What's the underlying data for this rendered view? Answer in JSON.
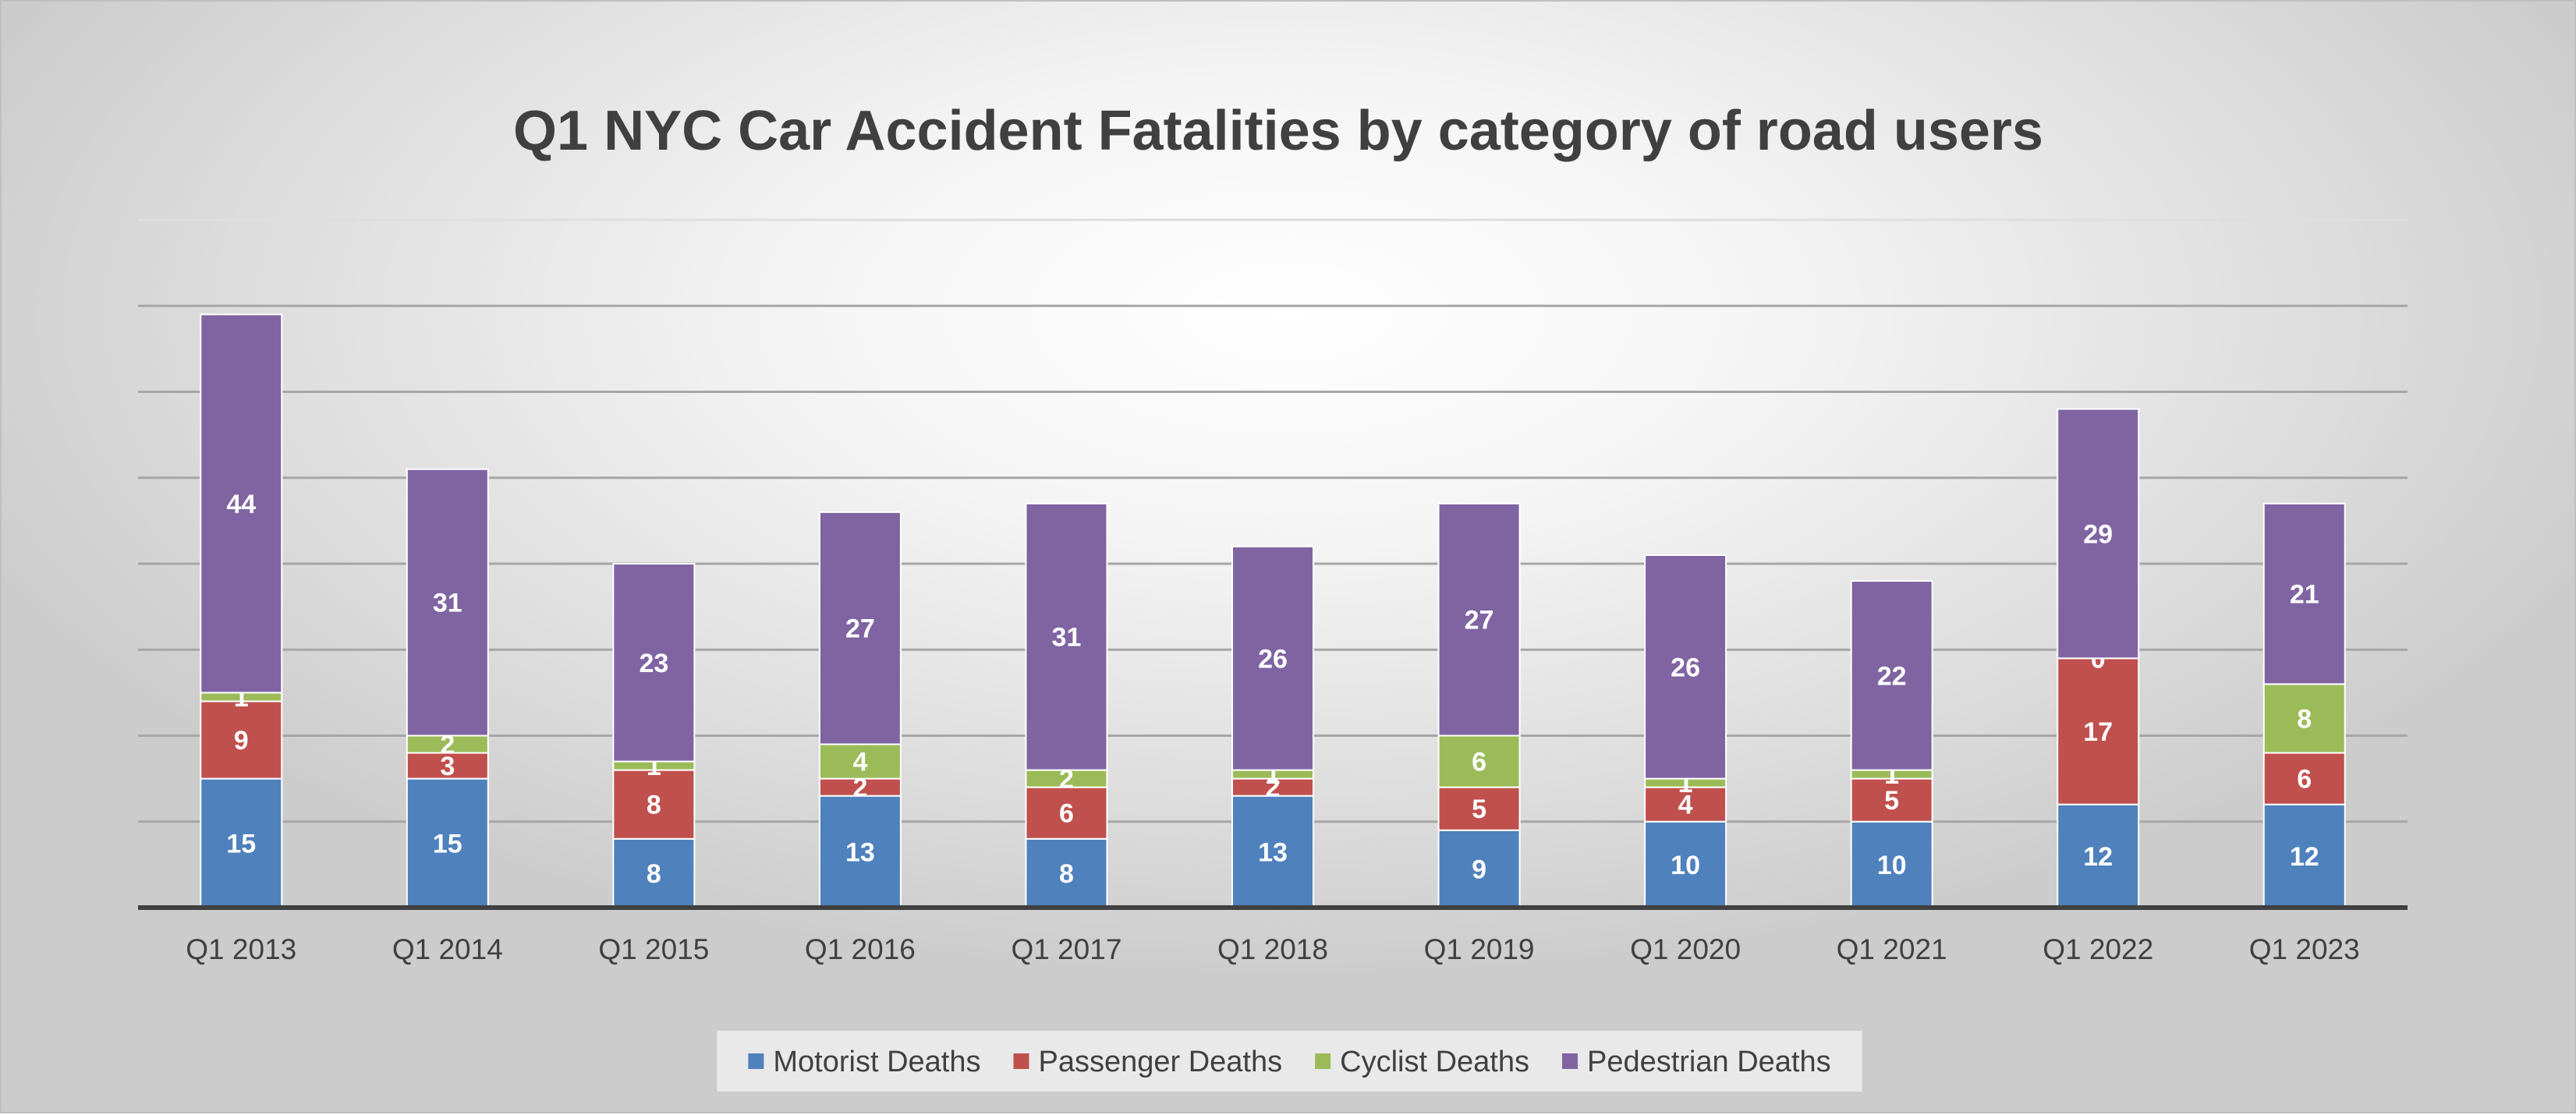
{
  "chart_data": {
    "type": "bar",
    "stacked": true,
    "title": "Q1 NYC Car Accident Fatalities by category of road users",
    "xlabel": "",
    "ylabel": "",
    "ylim": [
      0,
      80
    ],
    "y_gridline_step": 10,
    "y_tick_labels_shown": false,
    "grid": true,
    "legend_position": "bottom",
    "categories": [
      "Q1 2013",
      "Q1 2014",
      "Q1 2015",
      "Q1 2016",
      "Q1 2017",
      "Q1 2018",
      "Q1 2019",
      "Q1 2020",
      "Q1 2021",
      "Q1 2022",
      "Q1 2023"
    ],
    "series": [
      {
        "name": "Motorist Deaths",
        "color": "#4f81bd",
        "values": [
          15,
          15,
          8,
          13,
          8,
          13,
          9,
          10,
          10,
          12,
          12
        ]
      },
      {
        "name": "Passenger Deaths",
        "color": "#c0504d",
        "values": [
          9,
          3,
          8,
          2,
          6,
          2,
          5,
          4,
          5,
          17,
          6
        ]
      },
      {
        "name": "Cyclist Deaths",
        "color": "#9bbb59",
        "values": [
          1,
          2,
          1,
          4,
          2,
          1,
          6,
          1,
          1,
          0,
          8
        ]
      },
      {
        "name": "Pedestrian Deaths",
        "color": "#8064a2",
        "values": [
          44,
          31,
          23,
          27,
          31,
          26,
          27,
          26,
          22,
          29,
          21
        ]
      }
    ]
  }
}
